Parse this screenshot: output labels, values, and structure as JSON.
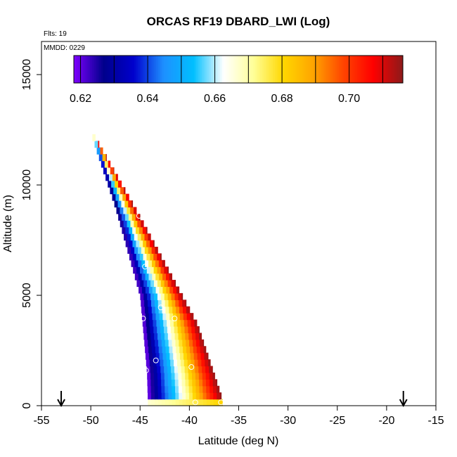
{
  "chart_data": {
    "type": "heatmap",
    "title": "ORCAS RF19 DBARD_LWI (Log)",
    "flights_note": "Flts: 19",
    "date_note": "MMDD: 0229",
    "xlabel": "Latitude (deg N)",
    "ylabel": "Altitude (m)",
    "xlim": [
      -55,
      -15
    ],
    "ylim": [
      0,
      16500
    ],
    "x_ticks": [
      -55,
      -50,
      -45,
      -40,
      -35,
      -30,
      -25,
      -20,
      -15
    ],
    "x_tick_labels": [
      "-55",
      "-50",
      "-45",
      "-40",
      "-35",
      "-30",
      "-25",
      "-20",
      "-15"
    ],
    "y_ticks": [
      0,
      5000,
      10000,
      15000
    ],
    "y_tick_labels": [
      "0",
      "5000",
      "10000",
      "15000"
    ],
    "colorbar": {
      "range": [
        0.618,
        0.716
      ],
      "ticks": [
        0.62,
        0.64,
        0.66,
        0.68,
        0.7
      ],
      "tick_labels": [
        "0.62",
        "0.64",
        "0.66",
        "0.68",
        "0.70"
      ],
      "segment_breaks": [
        0.62,
        0.63,
        0.64,
        0.65,
        0.66,
        0.67,
        0.68,
        0.69,
        0.7,
        0.71
      ],
      "colors": [
        "#7f00ff",
        "#00008b",
        "#0000cd",
        "#1e90ff",
        "#00bfff",
        "#ffffff",
        "#ffff99",
        "#ffd700",
        "#ffa500",
        "#ff4500",
        "#ff0000",
        "#8b1a1a"
      ]
    },
    "arrows_at_lat": [
      -53,
      -18.3
    ],
    "field": {
      "description_points": "Leading and trailing edges of the sampled swath, in data units",
      "left_edge": [
        [
          -50.1,
          12500
        ],
        [
          -47.5,
          9000
        ],
        [
          -45,
          5000
        ],
        [
          -44.3,
          1500
        ],
        [
          -44.2,
          0
        ]
      ],
      "right_edge": [
        [
          -50.0,
          12500
        ],
        [
          -45.2,
          8700
        ],
        [
          -39.2,
          3700
        ],
        [
          -36.8,
          500
        ],
        [
          -36.6,
          0
        ]
      ],
      "z_low": 0.618,
      "z_high": 0.716,
      "surface_band_z": 0.675
    },
    "observations": [
      {
        "lat": -45.1,
        "alt": 8600
      },
      {
        "lat": -44.5,
        "alt": 6300
      },
      {
        "lat": -42.9,
        "alt": 4450
      },
      {
        "lat": -44.7,
        "alt": 3950
      },
      {
        "lat": -41.5,
        "alt": 3950
      },
      {
        "lat": -43.4,
        "alt": 2050
      },
      {
        "lat": -39.8,
        "alt": 1750
      },
      {
        "lat": -44.4,
        "alt": 1600
      },
      {
        "lat": -39.4,
        "alt": 150
      },
      {
        "lat": -36.8,
        "alt": 150
      }
    ]
  }
}
